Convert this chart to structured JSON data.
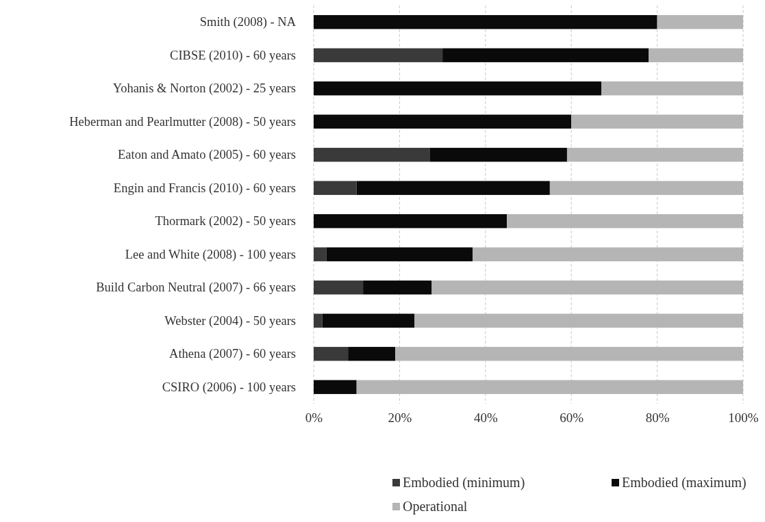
{
  "chart_data": {
    "type": "bar",
    "orientation": "horizontal",
    "stacked": true,
    "categories": [
      "Smith (2008) - NA",
      "CIBSE (2010)  - 60 years",
      "Yohanis & Norton (2002) - 25 years",
      "Heberman and Pearlmutter (2008)  - 50 years",
      "Eaton and Amato (2005) - 60 years",
      "Engin and Francis (2010) - 60 years",
      "Thormark (2002) - 50 years",
      "Lee and White (2008) - 100 years",
      "Build Carbon Neutral (2007)  - 66 years",
      "Webster (2004) - 50 years",
      "Athena (2007)  - 60 years",
      "CSIRO (2006) - 100 years"
    ],
    "series": [
      {
        "name": "Embodied (minimum)",
        "color": "#3a3a3a",
        "values": [
          0,
          30,
          0,
          0,
          27,
          10,
          0,
          3,
          11.5,
          2,
          8,
          0
        ]
      },
      {
        "name": "Embodied (maximum)",
        "color": "#0a0a0a",
        "values": [
          80,
          48,
          67,
          60,
          32,
          45,
          45,
          34,
          16,
          21.5,
          11,
          10
        ]
      },
      {
        "name": "Operational",
        "color": "#b5b5b5",
        "values": [
          20,
          22,
          33,
          40,
          41,
          45,
          55,
          63,
          72.5,
          76.5,
          81,
          90
        ]
      }
    ],
    "xlim": [
      0,
      100
    ],
    "xticks": [
      {
        "value": 0,
        "label": "0%"
      },
      {
        "value": 20,
        "label": "20%"
      },
      {
        "value": 40,
        "label": "40%"
      },
      {
        "value": 60,
        "label": "60%"
      },
      {
        "value": 80,
        "label": "80%"
      },
      {
        "value": 100,
        "label": "100%"
      }
    ],
    "grid": "x",
    "legend": "bottom"
  }
}
